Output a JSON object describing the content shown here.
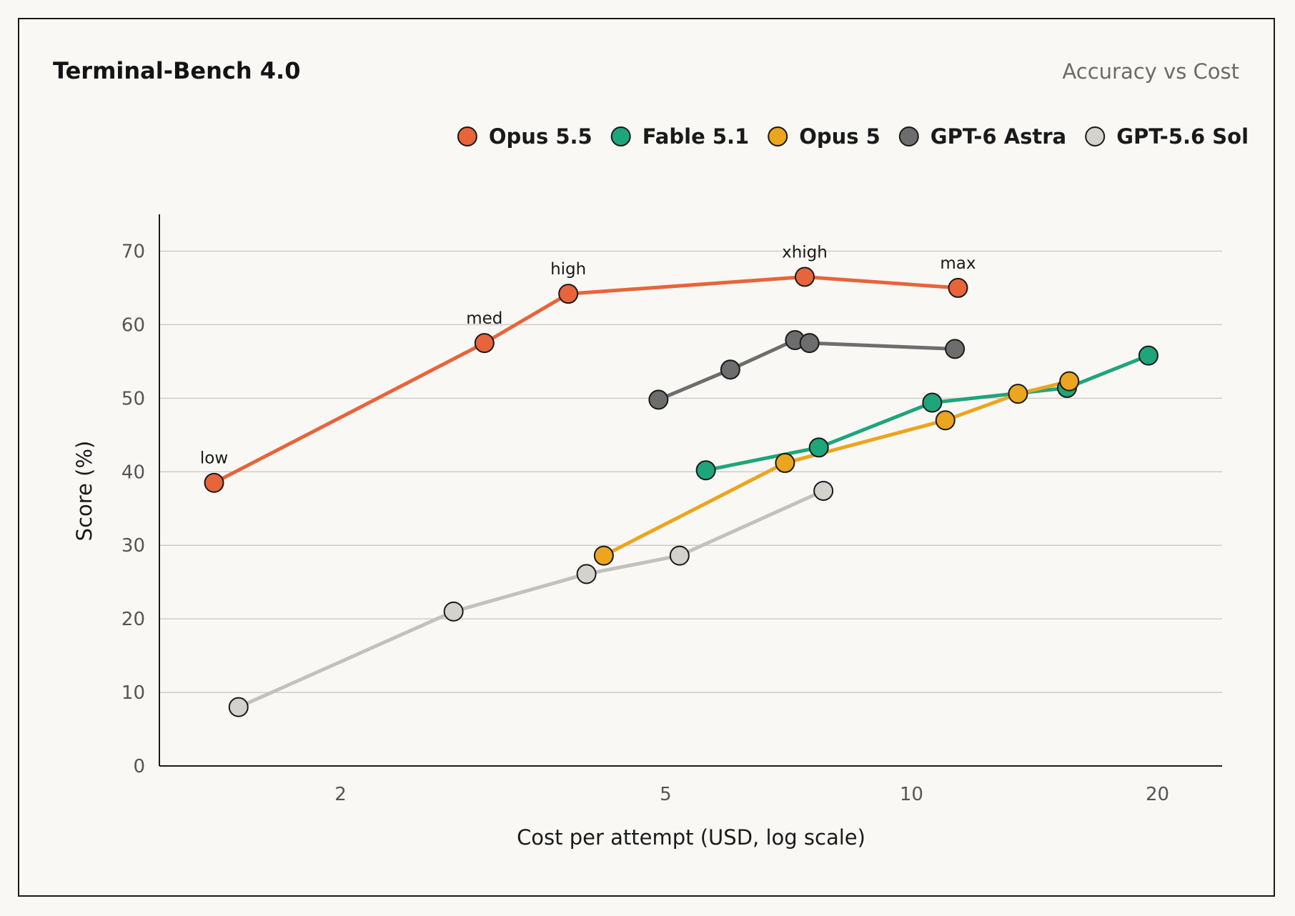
{
  "chart_data": {
    "type": "line",
    "title": "Terminal-Bench 4.0",
    "subtitle": "Accuracy vs Cost",
    "xlabel": "Cost per attempt (USD, log scale)",
    "ylabel": "Score (%)",
    "x_scale": "log",
    "xlim": [
      1.2,
      24
    ],
    "ylim": [
      0,
      75
    ],
    "x_ticks": [
      2,
      5,
      10,
      20
    ],
    "y_ticks": [
      0,
      10,
      20,
      30,
      40,
      50,
      60,
      70
    ],
    "grid": "horizontal",
    "legend_position": "top-right",
    "series": [
      {
        "name": "Opus 5.5",
        "color": "#e8643a",
        "points": [
          {
            "x": 1.4,
            "y": 38.5,
            "label": "low"
          },
          {
            "x": 3.0,
            "y": 57.5,
            "label": "med"
          },
          {
            "x": 3.8,
            "y": 64.2,
            "label": "high"
          },
          {
            "x": 7.4,
            "y": 66.5,
            "label": "xhigh"
          },
          {
            "x": 11.4,
            "y": 65.0,
            "label": "max"
          }
        ]
      },
      {
        "name": "Fable 5.1",
        "color": "#1fa57b",
        "points": [
          {
            "x": 5.6,
            "y": 40.2
          },
          {
            "x": 7.7,
            "y": 43.3
          },
          {
            "x": 10.6,
            "y": 49.4
          },
          {
            "x": 15.5,
            "y": 51.4
          },
          {
            "x": 19.5,
            "y": 55.8
          }
        ]
      },
      {
        "name": "Opus 5",
        "color": "#eba51e",
        "points": [
          {
            "x": 4.2,
            "y": 28.6
          },
          {
            "x": 7.0,
            "y": 41.2
          },
          {
            "x": 11.0,
            "y": 47.0
          },
          {
            "x": 13.5,
            "y": 50.6
          },
          {
            "x": 15.6,
            "y": 52.3
          }
        ]
      },
      {
        "name": "GPT-6 Astra",
        "color": "#6d6d6d",
        "points": [
          {
            "x": 4.9,
            "y": 49.8
          },
          {
            "x": 6.0,
            "y": 53.9
          },
          {
            "x": 7.2,
            "y": 57.9
          },
          {
            "x": 7.5,
            "y": 57.5
          },
          {
            "x": 11.3,
            "y": 56.7
          }
        ]
      },
      {
        "name": "GPT-5.6 Sol",
        "color": "#d3d2cc",
        "line_color": "#c2c1bb",
        "points": [
          {
            "x": 1.5,
            "y": 8.0
          },
          {
            "x": 2.75,
            "y": 21.0
          },
          {
            "x": 4.0,
            "y": 26.1
          },
          {
            "x": 5.2,
            "y": 28.6
          },
          {
            "x": 7.8,
            "y": 37.4
          }
        ]
      }
    ]
  }
}
